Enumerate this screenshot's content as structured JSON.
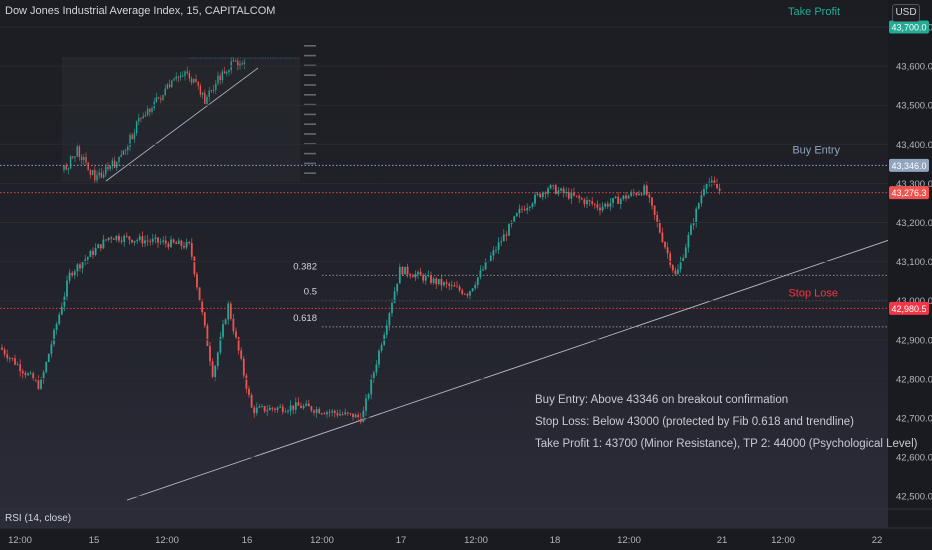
{
  "header": {
    "title": "Dow Jones Industrial Average Index, 15, CAPITALCOM",
    "unit": "USD"
  },
  "colors": {
    "up": "#26a69a",
    "down": "#ef5350",
    "take_profit": "#22ab94",
    "buy_entry": "#90a4be",
    "stop_loss": "#f23645",
    "fib": "#b2b5be",
    "trendline": "#b8b9c2"
  },
  "chart_data": {
    "type": "candlestick",
    "symbol": "Dow Jones Industrial Average Index",
    "interval": "15",
    "source": "CAPITALCOM",
    "y_axis": {
      "ticks": [
        43700,
        43600,
        43500,
        43400,
        43300,
        43200,
        43100,
        43000,
        42900,
        42800,
        42700,
        42600,
        42500
      ],
      "tick_labels": [
        "43,700.0",
        "43,600.0",
        "43,500.0",
        "43,400.0",
        "43,300.0",
        "43,200.0",
        "43,100.0",
        "43,000.0",
        "42,900.0",
        "42,800.0",
        "42,700.0",
        "42,600.0",
        "42,500.0"
      ],
      "range": [
        42470,
        43745
      ]
    },
    "x_axis": {
      "tick_labels": [
        "12:00",
        "15",
        "12:00",
        "16",
        "12:00",
        "17",
        "12:00",
        "18",
        "12:00",
        "21",
        "12:00",
        "22"
      ]
    },
    "last_price": 43276.3,
    "last_price_label": "43,276.3",
    "price_path": [
      [
        "start",
        42880
      ],
      [
        "dip",
        42780
      ],
      [
        "spike",
        43070
      ],
      [
        "peak",
        43165
      ],
      [
        "plateau",
        43140
      ],
      [
        "drop",
        42810
      ],
      [
        "rebound",
        42990
      ],
      [
        "low",
        42720
      ],
      [
        "flat",
        42730
      ],
      [
        "low2",
        42700
      ],
      [
        "breakout",
        42880
      ],
      [
        "rally",
        43080
      ],
      [
        "pullback",
        43020
      ],
      [
        "rise",
        43230
      ],
      [
        "high",
        43290
      ],
      [
        "range",
        43240
      ],
      [
        "high2",
        43285
      ],
      [
        "dip2",
        43060
      ],
      [
        "rally2",
        43310
      ],
      [
        "last",
        43276.3
      ]
    ],
    "levels": [
      {
        "name": "Take Profit",
        "value": 43700,
        "value_label": "43,700.0",
        "style": "dotted"
      },
      {
        "name": "Buy Entry",
        "value": 43346,
        "value_label": "43,346.0",
        "style": "dotted"
      },
      {
        "name": "Stop Lose",
        "value": 42980.5,
        "value_label": "42,980.5",
        "style": "dotted"
      }
    ],
    "fibonacci": [
      {
        "label": "0.382",
        "value": 43065
      },
      {
        "label": "0.5",
        "value": 43000
      },
      {
        "label": "0.618",
        "value": 42933
      }
    ],
    "trendline": {
      "start": {
        "x_label": "15",
        "value": 42490
      },
      "end": {
        "x_label": "22",
        "value": 43155
      }
    },
    "annotations": [
      "Buy Entry: Above 43346 on breakout confirmation",
      "Stop Loss: Below 43000 (protected by Fib 0.618 and trendline)",
      "Take Profit 1: 43700 (Minor Resistance), TP 2: 44000 (Psychological Level)"
    ],
    "indicator": "RSI (14, close)"
  }
}
